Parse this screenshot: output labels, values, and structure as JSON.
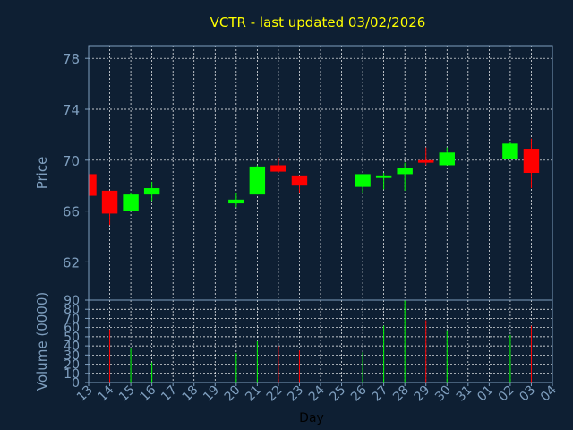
{
  "colors": {
    "background": "#0e1f33",
    "title": "#ffff00",
    "axis": "#7f9fbf",
    "grid": "#ffffff",
    "up": "#00ff00",
    "down": "#ff0000"
  },
  "chart_data": {
    "type": "candlestick",
    "title": "VCTR - last updated 03/02/2026",
    "xlabel": "Day",
    "price": {
      "ylabel": "Price",
      "ylim": [
        59,
        79
      ],
      "ticks": [
        62,
        66,
        70,
        74,
        78
      ],
      "grid": true
    },
    "volume": {
      "ylabel": "Volume (0000)",
      "ylim": [
        0,
        90
      ],
      "ticks": [
        0,
        10,
        20,
        30,
        40,
        50,
        60,
        70,
        80,
        90
      ],
      "grid": true
    },
    "x_ticks": [
      "13",
      "14",
      "15",
      "16",
      "17",
      "18",
      "19",
      "20",
      "21",
      "22",
      "23",
      "24",
      "25",
      "26",
      "27",
      "28",
      "29",
      "30",
      "31",
      "01",
      "02",
      "03",
      "04"
    ],
    "candles": [
      {
        "x": 0,
        "open": 68.9,
        "high": 69.0,
        "low": 67.0,
        "close": 67.2
      },
      {
        "x": 1,
        "open": 67.6,
        "high": 67.6,
        "low": 64.9,
        "close": 65.8,
        "volume": 58
      },
      {
        "x": 2,
        "open": 66.0,
        "high": 67.4,
        "low": 66.0,
        "close": 67.3,
        "volume": 37
      },
      {
        "x": 3,
        "open": 67.3,
        "high": 68.3,
        "low": 66.8,
        "close": 67.8,
        "volume": 22
      },
      {
        "x": 7,
        "open": 66.6,
        "high": 67.4,
        "low": 66.3,
        "close": 66.9,
        "volume": 32
      },
      {
        "x": 8,
        "open": 67.3,
        "high": 69.6,
        "low": 67.3,
        "close": 69.5,
        "volume": 45
      },
      {
        "x": 9,
        "open": 69.6,
        "high": 70.2,
        "low": 69.0,
        "close": 69.1,
        "volume": 40
      },
      {
        "x": 10,
        "open": 68.8,
        "high": 68.8,
        "low": 67.4,
        "close": 68.0,
        "volume": 35
      },
      {
        "x": 13,
        "open": 67.9,
        "high": 68.9,
        "low": 67.4,
        "close": 68.9,
        "volume": 33
      },
      {
        "x": 14,
        "open": 68.6,
        "high": 69.0,
        "low": 67.7,
        "close": 68.8,
        "volume": 62
      },
      {
        "x": 15,
        "open": 68.9,
        "high": 69.8,
        "low": 67.6,
        "close": 69.4,
        "volume": 90
      },
      {
        "x": 16,
        "open": 70.0,
        "high": 71.0,
        "low": 69.6,
        "close": 69.8,
        "volume": 68
      },
      {
        "x": 17,
        "open": 69.6,
        "high": 71.0,
        "low": 69.6,
        "close": 70.6,
        "volume": 57
      },
      {
        "x": 20,
        "open": 70.1,
        "high": 71.4,
        "low": 70.1,
        "close": 71.3,
        "volume": 52
      },
      {
        "x": 21,
        "open": 70.9,
        "high": 71.7,
        "low": 67.8,
        "close": 69.0,
        "volume": 62
      }
    ]
  }
}
